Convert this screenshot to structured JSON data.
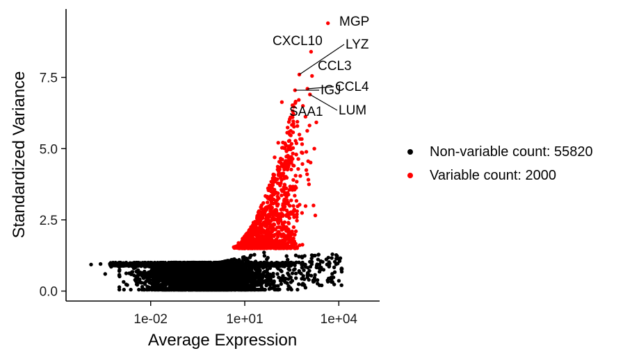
{
  "chart_data": {
    "type": "scatter",
    "xlabel": "Average Expression",
    "ylabel": "Standardized Variance",
    "xscale": "log10",
    "xlim": [
      2e-05,
      200000
    ],
    "ylim": [
      -0.35,
      9.9
    ],
    "xticks": [
      {
        "value": 0.01,
        "label": "1e-02"
      },
      {
        "value": 10,
        "label": "1e+01"
      },
      {
        "value": 10000,
        "label": "1e+04"
      }
    ],
    "yticks": [
      {
        "value": 0.0,
        "label": "0.0"
      },
      {
        "value": 2.5,
        "label": "2.5"
      },
      {
        "value": 5.0,
        "label": "5.0"
      },
      {
        "value": 7.5,
        "label": "7.5"
      }
    ],
    "grid": false,
    "legend_position": "right",
    "series": [
      {
        "name": "Non-variable count: 55820",
        "color": "#000000"
      },
      {
        "name": "Variable count: 2000",
        "color": "#ff0000"
      }
    ],
    "labeled_genes": [
      {
        "gene": "MGP",
        "x": 4500,
        "y": 9.4
      },
      {
        "gene": "CXCL10",
        "x": 1300,
        "y": 8.4
      },
      {
        "gene": "LYZ",
        "x": 550,
        "y": 7.6
      },
      {
        "gene": "CCL3",
        "x": 1400,
        "y": 7.55
      },
      {
        "gene": "CCL4",
        "x": 1000,
        "y": 7.1
      },
      {
        "gene": "IGJ",
        "x": 400,
        "y": 7.05
      },
      {
        "gene": "LUM",
        "x": 1200,
        "y": 6.9
      },
      {
        "gene": "SAA1",
        "x": 420,
        "y": 6.65
      }
    ]
  }
}
